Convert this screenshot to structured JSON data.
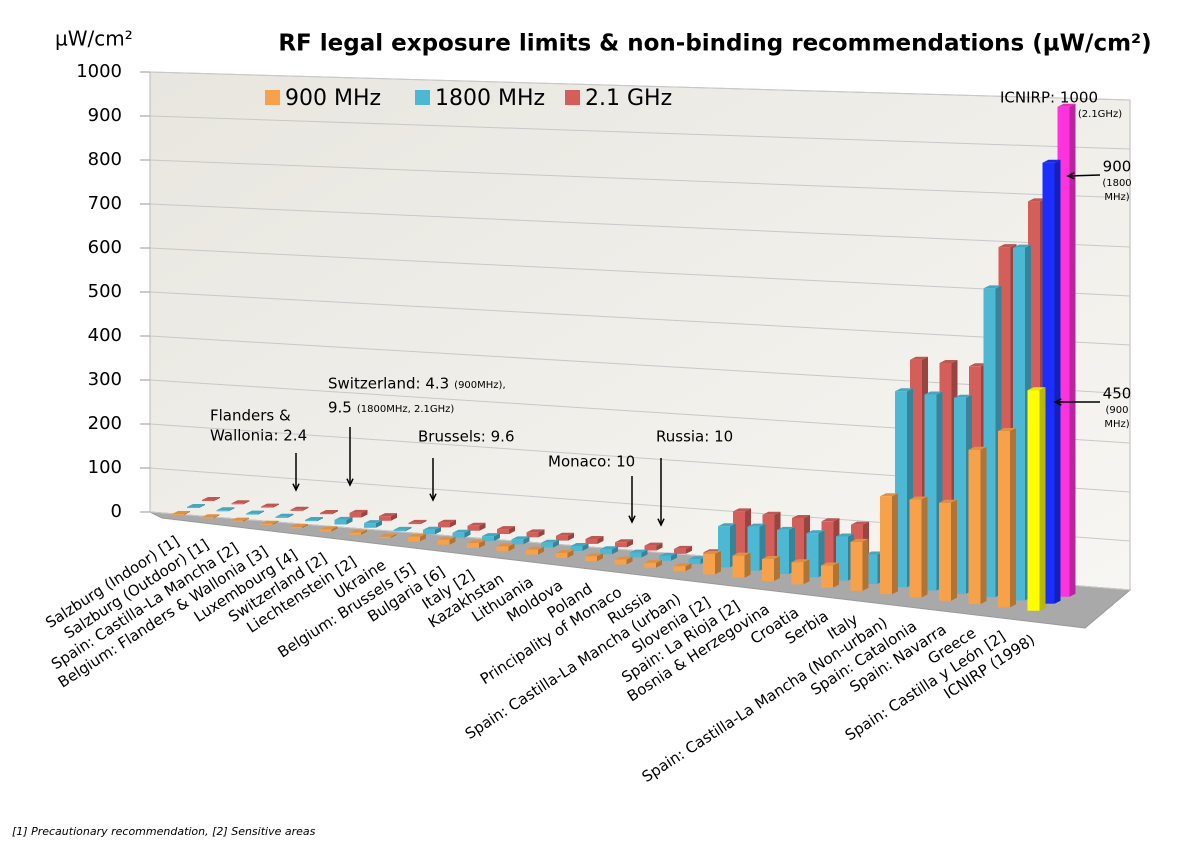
{
  "chart_data": {
    "type": "bar3d",
    "title": "RF legal exposure limits & non-binding recommendations (µW/cm²)",
    "y_label": "µW/cm²",
    "footnote": "[1] Precautionary recommendation, [2] Sensitive areas",
    "categories": [
      "Salzburg (Indoor) [1]",
      "Salzburg (Outdoor) [1]",
      "Spain: Castilla-La Mancha [2]",
      "Belgium: Flanders & Wallonia [3]",
      "Luxembourg [4]",
      "Switzerland [2]",
      "Liechtenstein [2]",
      "Ukraine",
      "Belgium: Brussels [5]",
      "Bulgaria [6]",
      "Italy [2]",
      "Kazakhstan",
      "Lithuania",
      "Moldova",
      "Poland",
      "Principality of Monaco",
      "Russia",
      "Spain: Castilla-La Mancha (urban)",
      "Slovenia [2]",
      "Spain: La Rioja [2]",
      "Bosnia & Herzegovina",
      "Croatia",
      "Serbia",
      "Italy",
      "Spain: Castilla-La Mancha (Non-urban)",
      "Spain: Catalonia",
      "Spain: Navarra",
      "Greece",
      "Spain: Castilla y León [2]",
      "ICNIRP (1998)"
    ],
    "series": [
      {
        "name": "900 MHz",
        "color": "#f7a14a",
        "last_color": "#ffff00",
        "values": [
          0.0001,
          0.001,
          0.1,
          2.4,
          2.4,
          4.3,
          4.3,
          2.5,
          9.6,
          10,
          10,
          10,
          10,
          10,
          10,
          10,
          10,
          10,
          42,
          45,
          45,
          45,
          45,
          100,
          200,
          200,
          200,
          315,
          360,
          450
        ]
      },
      {
        "name": "1800 MHz",
        "color": "#4db8d4",
        "last_color": "#1a2eff",
        "values": [
          0.0001,
          0.001,
          0.1,
          2.4,
          2.4,
          9.5,
          9.5,
          2.5,
          9.6,
          10,
          10,
          10,
          10,
          10,
          10,
          10,
          10,
          10,
          84,
          90,
          90,
          90,
          90,
          60,
          400,
          400,
          400,
          630,
          720,
          900
        ]
      },
      {
        "name": "2.1 GHz",
        "color": "#d45f5a",
        "last_color": "#ff33dd",
        "values": [
          0.0001,
          0.001,
          0.1,
          2.4,
          2.4,
          9.5,
          9.5,
          2.5,
          9.6,
          10,
          10,
          10,
          10,
          10,
          10,
          10,
          10,
          10,
          100,
          100,
          100,
          100,
          100,
          80,
          450,
          450,
          450,
          700,
          800,
          1000
        ]
      }
    ],
    "ylim": [
      0,
      1000
    ],
    "yticks": [
      0,
      100,
      200,
      300,
      400,
      500,
      600,
      700,
      800,
      900,
      1000
    ],
    "grid": true,
    "legend": "top-left",
    "annotations": [
      {
        "lines": [
          "Flanders &",
          "Wallonia: 2.4"
        ],
        "color": "#000000"
      },
      {
        "lines": [
          "Switzerland: 4.3",
          "9.5"
        ],
        "small_lines": [
          "(900MHz),",
          "(1800MHz, 2.1GHz)"
        ],
        "color": "#000000"
      },
      {
        "lines": [
          "Brussels: 9.6"
        ],
        "color": "#000000"
      },
      {
        "lines": [
          "Monaco: 10"
        ],
        "color": "#000000"
      },
      {
        "lines": [
          "Russia: 10"
        ],
        "color": "#000000"
      },
      {
        "lines": [
          "ICNIRP: 1000"
        ],
        "small_lines": [
          "(2.1GHz)"
        ],
        "color": "#e00000"
      },
      {
        "lines": [
          "900"
        ],
        "small_lines": [
          "(1800",
          "MHz)"
        ],
        "color": "#e00000"
      },
      {
        "lines": [
          "450"
        ],
        "small_lines": [
          "(900",
          "MHz)"
        ],
        "color": "#e00000"
      }
    ]
  }
}
